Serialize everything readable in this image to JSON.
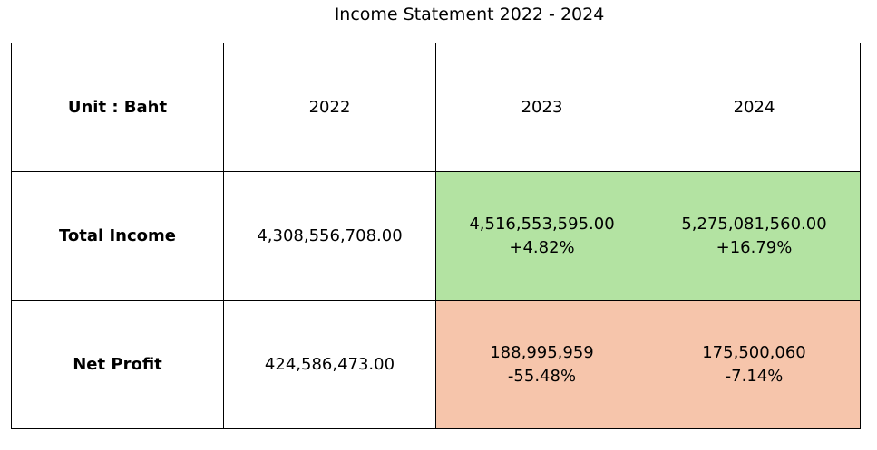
{
  "title": "Income Statement 2022 - 2024",
  "table": {
    "corner_label": "Unit : Baht",
    "years": [
      "2022",
      "2023",
      "2024"
    ],
    "rows": [
      {
        "label": "Total Income",
        "cells": [
          {
            "value": "4,308,556,708.00",
            "change": ""
          },
          {
            "value": "4,516,553,595.00",
            "change": "+4.82%"
          },
          {
            "value": "5,275,081,560.00",
            "change": "+16.79%"
          }
        ]
      },
      {
        "label": "Net Profit",
        "cells": [
          {
            "value": "424,586,473.00",
            "change": ""
          },
          {
            "value": "188,995,959",
            "change": "-55.48%"
          },
          {
            "value": "175,500,060",
            "change": "-7.14%"
          }
        ]
      }
    ]
  },
  "colors": {
    "increase_fill": "#b3e3a2",
    "decrease_fill": "#f6c5ab",
    "border": "#000000"
  }
}
